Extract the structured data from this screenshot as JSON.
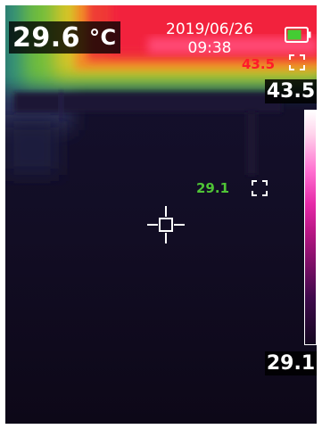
{
  "readout": {
    "center_temp": "29.6",
    "center_unit": "°C",
    "date": "2019/06/26",
    "time": "09:38",
    "hot_spot_temp": "43.5",
    "cold_spot_temp": "29.1"
  },
  "scale": {
    "max": "43.5",
    "min": "29.1"
  },
  "battery": {
    "level": 0.75,
    "color": "#44cc33"
  },
  "colors": {
    "hot": "#ff1a2a",
    "cold": "#4fc436",
    "background": "#141024"
  },
  "icons": {
    "crosshair": "crosshair-icon",
    "hot_marker": "hot-spot-marker-icon",
    "cold_marker": "cold-spot-marker-icon",
    "battery": "battery-icon"
  }
}
